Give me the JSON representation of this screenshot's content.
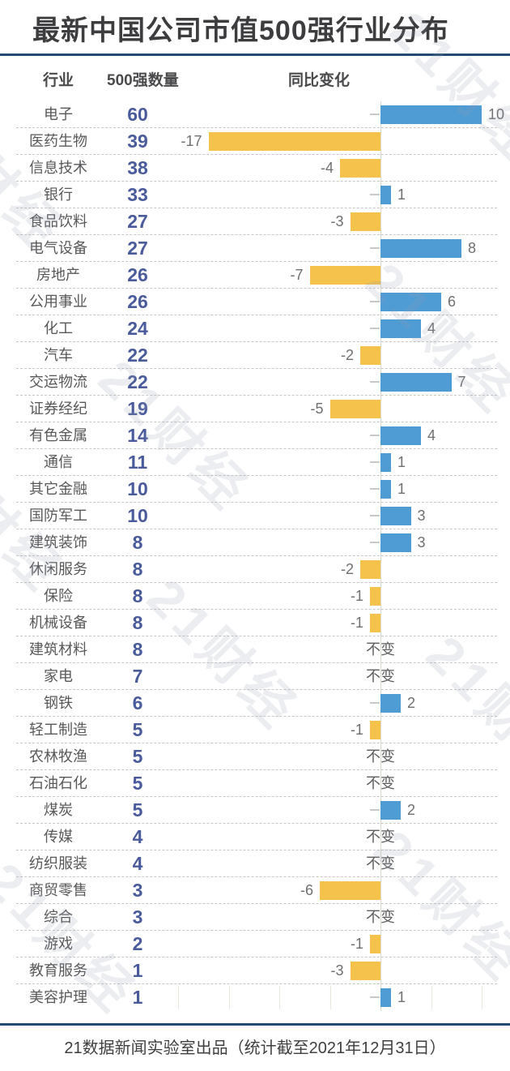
{
  "title": "最新中国公司市值500强行业分布",
  "footer": "21数据新闻实验室出品（统计截至2021年12月31日）",
  "watermark": "21财经",
  "columns": {
    "industry": "行业",
    "count": "500强数量",
    "change": "同比变化"
  },
  "unchanged_label": "不变",
  "colors": {
    "positive_bar": "#4f9cd5",
    "negative_bar": "#f5c24c",
    "count_text": "#4a5b9b",
    "rule": "#234b72",
    "label_text": "#58585a",
    "value_text": "#6f6f71"
  },
  "chart_data": {
    "type": "bar",
    "orientation": "horizontal-diverging",
    "title": "最新中国公司市值500强行业分布",
    "xlabel": "同比变化",
    "ylabel": "行业",
    "xlim": [
      -20,
      12
    ],
    "tick_interval": 5,
    "zero_line": true,
    "grid": false,
    "legend": "none",
    "rows": [
      {
        "industry": "电子",
        "count": 60,
        "change": 10
      },
      {
        "industry": "医药生物",
        "count": 39,
        "change": -17
      },
      {
        "industry": "信息技术",
        "count": 38,
        "change": -4
      },
      {
        "industry": "银行",
        "count": 33,
        "change": 1
      },
      {
        "industry": "食品饮料",
        "count": 27,
        "change": -3
      },
      {
        "industry": "电气设备",
        "count": 27,
        "change": 8
      },
      {
        "industry": "房地产",
        "count": 26,
        "change": -7
      },
      {
        "industry": "公用事业",
        "count": 26,
        "change": 6
      },
      {
        "industry": "化工",
        "count": 24,
        "change": 4
      },
      {
        "industry": "汽车",
        "count": 22,
        "change": -2
      },
      {
        "industry": "交运物流",
        "count": 22,
        "change": 7
      },
      {
        "industry": "证券经纪",
        "count": 19,
        "change": -5
      },
      {
        "industry": "有色金属",
        "count": 14,
        "change": 4
      },
      {
        "industry": "通信",
        "count": 11,
        "change": 1
      },
      {
        "industry": "其它金融",
        "count": 10,
        "change": 1
      },
      {
        "industry": "国防军工",
        "count": 10,
        "change": 3
      },
      {
        "industry": "建筑装饰",
        "count": 8,
        "change": 3
      },
      {
        "industry": "休闲服务",
        "count": 8,
        "change": -2
      },
      {
        "industry": "保险",
        "count": 8,
        "change": -1
      },
      {
        "industry": "机械设备",
        "count": 8,
        "change": -1
      },
      {
        "industry": "建筑材料",
        "count": 8,
        "change": 0
      },
      {
        "industry": "家电",
        "count": 7,
        "change": 0
      },
      {
        "industry": "钢铁",
        "count": 6,
        "change": 2
      },
      {
        "industry": "轻工制造",
        "count": 5,
        "change": -1
      },
      {
        "industry": "农林牧渔",
        "count": 5,
        "change": 0
      },
      {
        "industry": "石油石化",
        "count": 5,
        "change": 0
      },
      {
        "industry": "煤炭",
        "count": 5,
        "change": 2
      },
      {
        "industry": "传媒",
        "count": 4,
        "change": 0
      },
      {
        "industry": "纺织服装",
        "count": 4,
        "change": 0
      },
      {
        "industry": "商贸零售",
        "count": 3,
        "change": -6
      },
      {
        "industry": "综合",
        "count": 3,
        "change": 0
      },
      {
        "industry": "游戏",
        "count": 2,
        "change": -1
      },
      {
        "industry": "教育服务",
        "count": 1,
        "change": -3
      },
      {
        "industry": "美容护理",
        "count": 1,
        "change": 1
      }
    ]
  }
}
